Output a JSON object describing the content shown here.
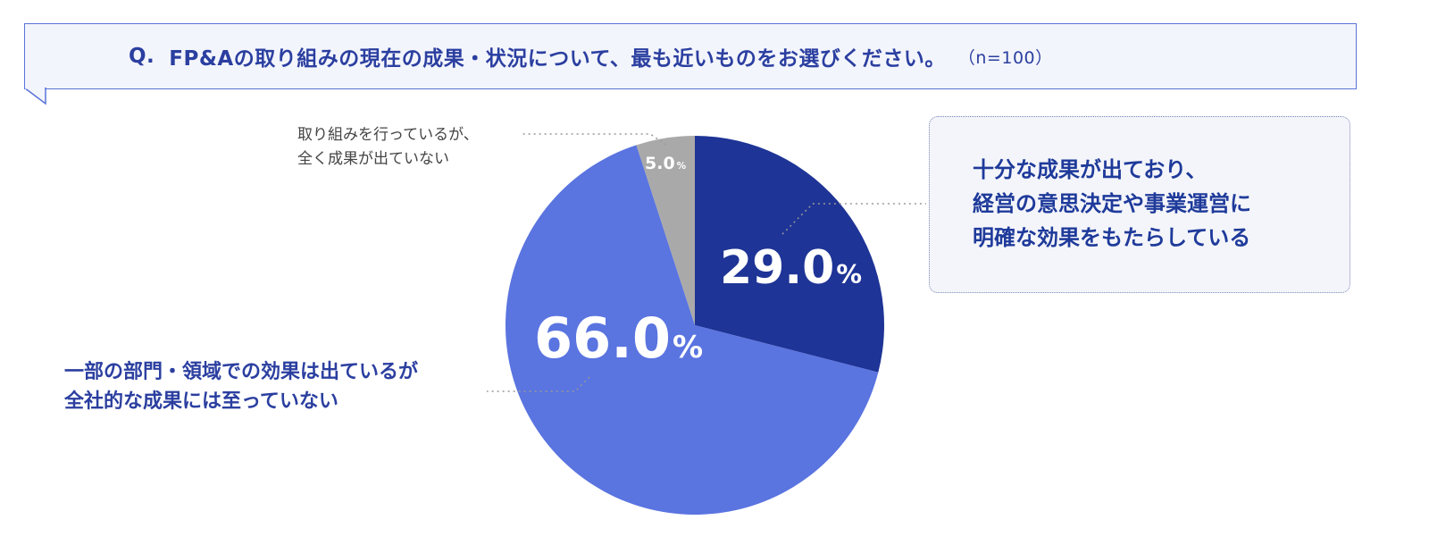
{
  "question": {
    "number": "Q.",
    "text": "FP&Aの取り組みの現在の成果・状況について、最も近いものをお選びください。",
    "n": "（n=100）"
  },
  "chart_data": {
    "type": "pie",
    "categories": [
      "十分な成果が出ており、経営の意思決定や事業運営に明確な効果をもたらしている",
      "一部の部門・領域での効果は出ているが全社的な成果には至っていない",
      "取り組みを行っているが、全く成果が出ていない"
    ],
    "values": [
      29.0,
      66.0,
      5.0
    ],
    "colors": [
      "#1e3496",
      "#5a74e0",
      "#a9a9a9"
    ],
    "labels": [
      {
        "number": "29.0",
        "unit": "%"
      },
      {
        "number": "66.0",
        "unit": "%"
      },
      {
        "number": "5.0",
        "unit": "%"
      }
    ],
    "callouts": {
      "slice_29": [
        "十分な成果が出ており、",
        "経営の意思決定や事業運営に",
        "明確な効果をもたらしている"
      ],
      "slice_66": [
        "一部の部門・領域での効果は出ているが",
        "全社的な成果には至っていない"
      ],
      "slice_5": [
        "取り組みを行っているが、",
        "全く成果が出ていない"
      ]
    }
  }
}
